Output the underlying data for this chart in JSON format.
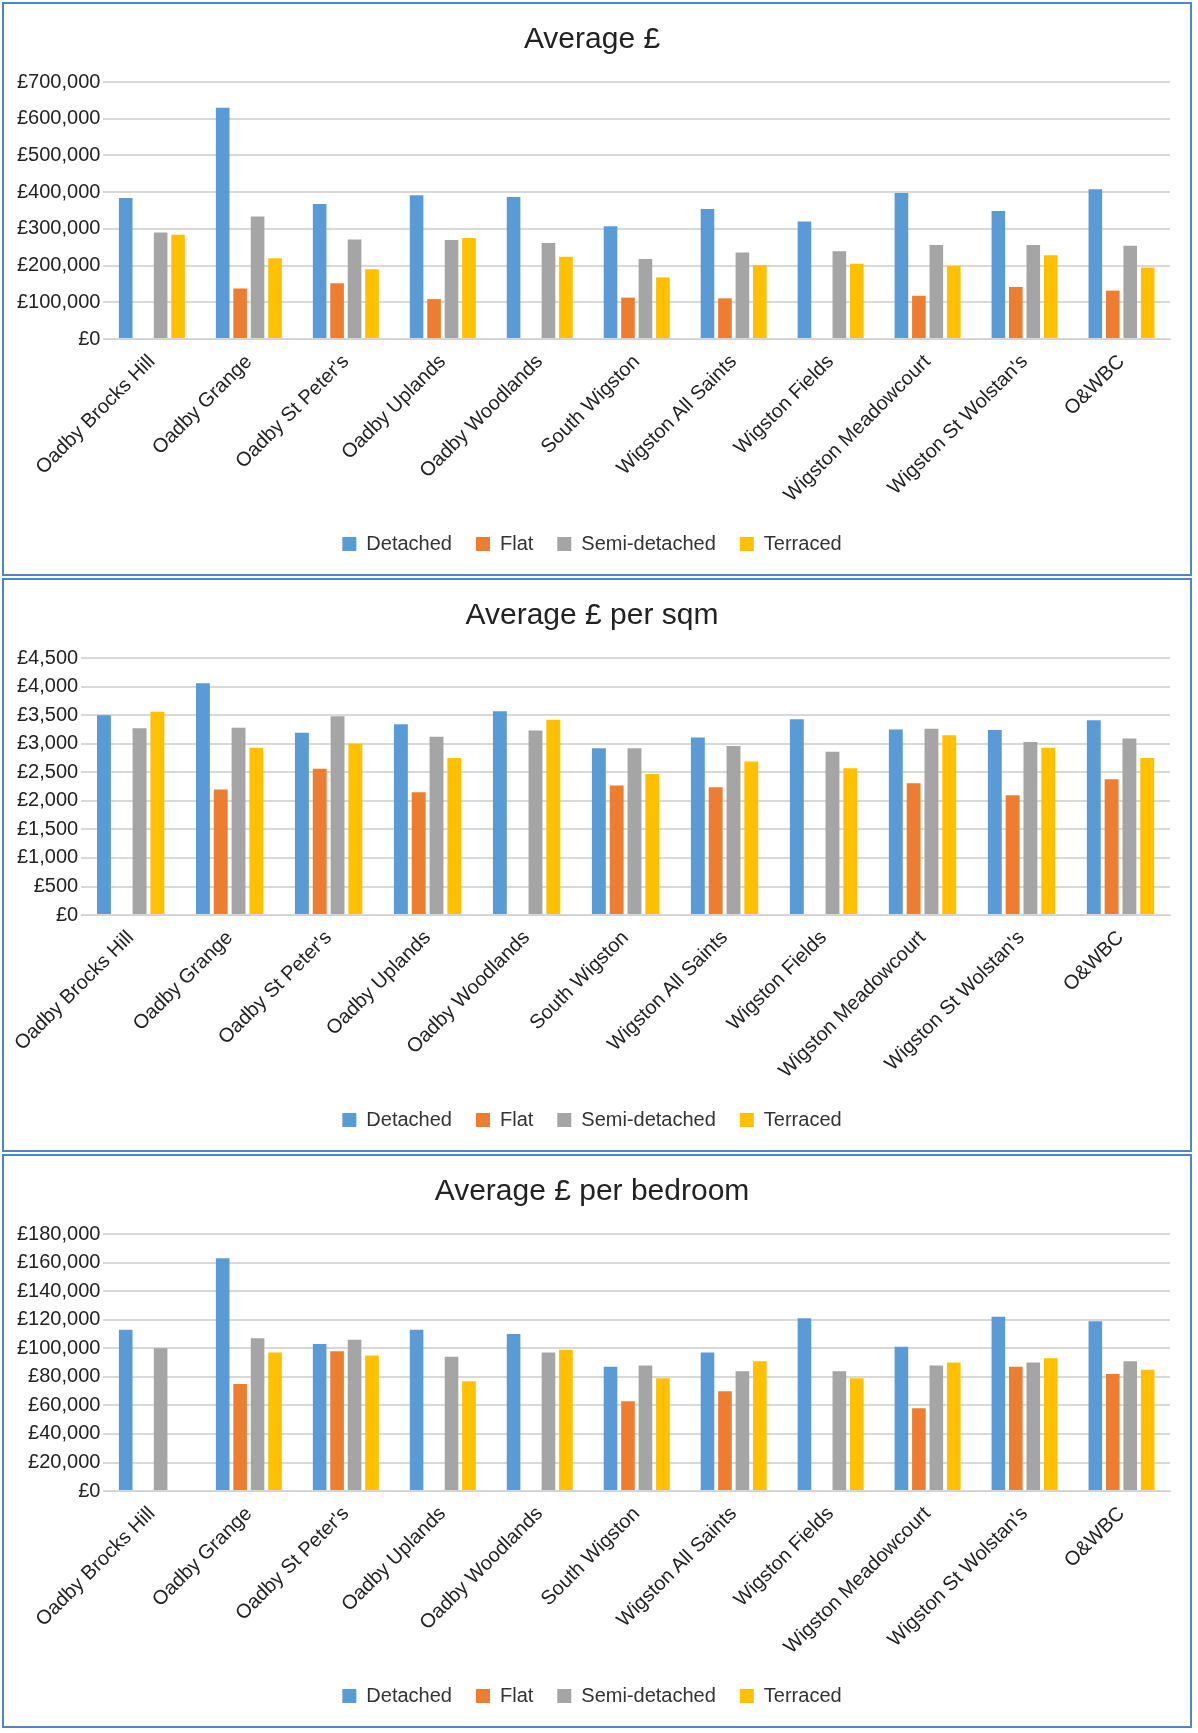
{
  "chart_data": [
    {
      "type": "bar",
      "title": "Average £",
      "categories": [
        "Oadby Brocks Hill",
        "Oadby Grange",
        "Oadby St Peter's",
        "Oadby Uplands",
        "Oadby Woodlands",
        "South Wigston",
        "Wigston All Saints",
        "Wigston Fields",
        "Wigston Meadowcourt",
        "Wigston St Wolstan's",
        "O&WBC"
      ],
      "series": [
        {
          "name": "Detached",
          "color": "#5b9bd5",
          "values": [
            384000,
            630000,
            368000,
            392000,
            387000,
            307000,
            354000,
            320000,
            398000,
            349000,
            408000
          ]
        },
        {
          "name": "Flat",
          "color": "#ed7d31",
          "values": [
            null,
            138000,
            152000,
            109000,
            null,
            113000,
            111000,
            null,
            118000,
            142000,
            132000
          ]
        },
        {
          "name": "Semi-detached",
          "color": "#a5a5a5",
          "values": [
            290000,
            334000,
            271000,
            270000,
            262000,
            218000,
            236000,
            239000,
            256000,
            256000,
            254000
          ]
        },
        {
          "name": "Terraced",
          "color": "#ffc000",
          "values": [
            284000,
            220000,
            190000,
            275000,
            224000,
            168000,
            202000,
            205000,
            199000,
            228000,
            195000
          ]
        }
      ],
      "ylim": [
        0,
        700000
      ],
      "yticks": [
        {
          "value": 0,
          "label": "£0"
        },
        {
          "value": 100000,
          "label": "£100,000"
        },
        {
          "value": 200000,
          "label": "£200,000"
        },
        {
          "value": 300000,
          "label": "£300,000"
        },
        {
          "value": 400000,
          "label": "£400,000"
        },
        {
          "value": 500000,
          "label": "£500,000"
        },
        {
          "value": 600000,
          "label": "£600,000"
        },
        {
          "value": 700000,
          "label": "£700,000"
        }
      ],
      "grid": "y",
      "legend": "bottom"
    },
    {
      "type": "bar",
      "title": "Average £ per sqm",
      "categories": [
        "Oadby Brocks Hill",
        "Oadby Grange",
        "Oadby St Peter's",
        "Oadby Uplands",
        "Oadby Woodlands",
        "South Wigston",
        "Wigston All Saints",
        "Wigston Fields",
        "Wigston Meadowcourt",
        "Wigston St Wolstan's",
        "O&WBC"
      ],
      "series": [
        {
          "name": "Detached",
          "color": "#5b9bd5",
          "values": [
            3500,
            4060,
            3190,
            3340,
            3570,
            2920,
            3110,
            3430,
            3250,
            3240,
            3410
          ]
        },
        {
          "name": "Flat",
          "color": "#ed7d31",
          "values": [
            null,
            2200,
            2560,
            2150,
            null,
            2270,
            2240,
            null,
            2310,
            2100,
            2380
          ]
        },
        {
          "name": "Semi-detached",
          "color": "#a5a5a5",
          "values": [
            3270,
            3280,
            3480,
            3120,
            3230,
            2920,
            2960,
            2860,
            3260,
            3030,
            3090
          ]
        },
        {
          "name": "Terraced",
          "color": "#ffc000",
          "values": [
            3560,
            2930,
            3000,
            2750,
            3420,
            2470,
            2690,
            2570,
            3150,
            2930,
            2750
          ]
        }
      ],
      "ylim": [
        0,
        4500
      ],
      "yticks": [
        {
          "value": 0,
          "label": "£0"
        },
        {
          "value": 500,
          "label": "£500"
        },
        {
          "value": 1000,
          "label": "£1,000"
        },
        {
          "value": 1500,
          "label": "£1,500"
        },
        {
          "value": 2000,
          "label": "£2,000"
        },
        {
          "value": 2500,
          "label": "£2,500"
        },
        {
          "value": 3000,
          "label": "£3,000"
        },
        {
          "value": 3500,
          "label": "£3,500"
        },
        {
          "value": 4000,
          "label": "£4,000"
        },
        {
          "value": 4500,
          "label": "£4,500"
        }
      ],
      "grid": "y",
      "legend": "bottom"
    },
    {
      "type": "bar",
      "title": "Average £ per bedroom",
      "categories": [
        "Oadby Brocks Hill",
        "Oadby Grange",
        "Oadby St Peter's",
        "Oadby Uplands",
        "Oadby Woodlands",
        "South Wigston",
        "Wigston All Saints",
        "Wigston Fields",
        "Wigston Meadowcourt",
        "Wigston St Wolstan's",
        "O&WBC"
      ],
      "series": [
        {
          "name": "Detached",
          "color": "#5b9bd5",
          "values": [
            113000,
            163000,
            103000,
            113000,
            110000,
            87000,
            97000,
            121000,
            101000,
            122000,
            119000
          ]
        },
        {
          "name": "Flat",
          "color": "#ed7d31",
          "values": [
            null,
            75000,
            98000,
            null,
            null,
            63000,
            70000,
            null,
            58000,
            87000,
            82000
          ]
        },
        {
          "name": "Semi-detached",
          "color": "#a5a5a5",
          "values": [
            100000,
            107000,
            106000,
            94000,
            97000,
            88000,
            84000,
            84000,
            88000,
            90000,
            91000
          ]
        },
        {
          "name": "Terraced",
          "color": "#ffc000",
          "values": [
            null,
            97000,
            95000,
            77000,
            99000,
            79000,
            91000,
            79000,
            90000,
            93000,
            85000
          ]
        }
      ],
      "ylim": [
        0,
        180000
      ],
      "yticks": [
        {
          "value": 0,
          "label": "£0"
        },
        {
          "value": 20000,
          "label": "£20,000"
        },
        {
          "value": 40000,
          "label": "£40,000"
        },
        {
          "value": 60000,
          "label": "£60,000"
        },
        {
          "value": 80000,
          "label": "£80,000"
        },
        {
          "value": 100000,
          "label": "£100,000"
        },
        {
          "value": 120000,
          "label": "£120,000"
        },
        {
          "value": 140000,
          "label": "£140,000"
        },
        {
          "value": 160000,
          "label": "£160,000"
        },
        {
          "value": 180000,
          "label": "£180,000"
        }
      ],
      "grid": "y",
      "legend": "bottom"
    }
  ]
}
